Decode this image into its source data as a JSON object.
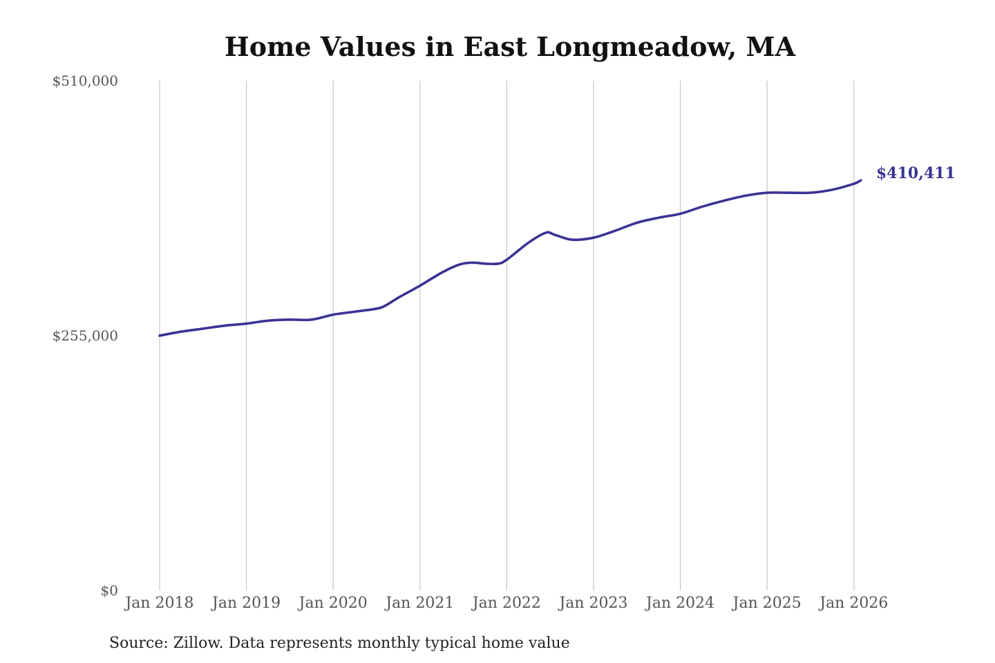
{
  "chart_data": {
    "type": "line",
    "title": "Home Values in East Longmeadow, MA",
    "xlabel": "",
    "ylabel": "",
    "ylim": [
      0,
      510000
    ],
    "y_ticks": [
      {
        "value": 0,
        "label": "$0"
      },
      {
        "value": 255000,
        "label": "$255,000"
      },
      {
        "value": 510000,
        "label": "$510,000"
      }
    ],
    "x_ticks": [
      {
        "value": 2018.0,
        "label": "Jan 2018"
      },
      {
        "value": 2019.0,
        "label": "Jan 2019"
      },
      {
        "value": 2020.0,
        "label": "Jan 2020"
      },
      {
        "value": 2021.0,
        "label": "Jan 2021"
      },
      {
        "value": 2022.0,
        "label": "Jan 2022"
      },
      {
        "value": 2023.0,
        "label": "Jan 2023"
      },
      {
        "value": 2024.0,
        "label": "Jan 2024"
      },
      {
        "value": 2025.0,
        "label": "Jan 2025"
      },
      {
        "value": 2026.0,
        "label": "Jan 2026"
      }
    ],
    "xlim": [
      2018.0,
      2026.1
    ],
    "grid": {
      "vertical": true,
      "horizontal": false
    },
    "legend": "none",
    "series": [
      {
        "color": "#3a3394",
        "x": [
          2018.0,
          2018.25,
          2018.5,
          2018.75,
          2019.0,
          2019.25,
          2019.5,
          2019.75,
          2020.0,
          2020.25,
          2020.5,
          2020.6,
          2020.75,
          2021.0,
          2021.25,
          2021.45,
          2021.6,
          2021.75,
          2021.9,
          2022.0,
          2022.25,
          2022.45,
          2022.55,
          2022.75,
          2023.0,
          2023.25,
          2023.5,
          2023.75,
          2024.0,
          2024.25,
          2024.5,
          2024.75,
          2025.0,
          2025.25,
          2025.5,
          2025.75,
          2026.0,
          2026.08
        ],
        "values": [
          255000,
          259000,
          262000,
          265000,
          267000,
          270000,
          271000,
          271000,
          276000,
          279000,
          282000,
          285000,
          293000,
          305000,
          318000,
          326000,
          328000,
          327000,
          327000,
          331000,
          348000,
          358000,
          356000,
          351000,
          353000,
          360000,
          368000,
          373000,
          377000,
          384000,
          390000,
          395000,
          398000,
          398000,
          398000,
          401000,
          407000,
          410411
        ]
      }
    ],
    "end_label": {
      "text": "$410,411",
      "color": "#3a3394"
    },
    "source": "Source: Zillow. Data represents monthly typical home value"
  }
}
